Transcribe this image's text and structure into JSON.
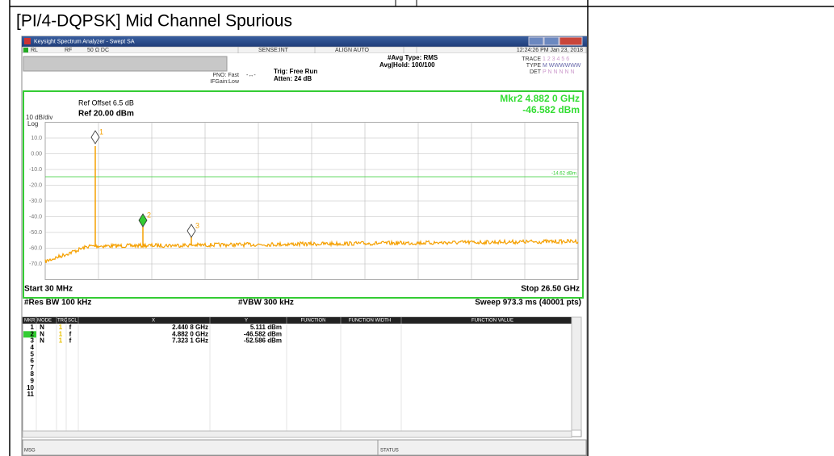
{
  "document": {
    "caption": "[PI/4-DQPSK] Mid Channel Spurious"
  },
  "window": {
    "title": "Keysight Spectrum Analyzer - Swept SA"
  },
  "status_row": [
    "RL",
    "RF",
    "50 Ω  DC",
    "SENSE:INT",
    "ALIGN AUTO",
    "12:24:26 PM Jan 23, 2018"
  ],
  "settings": {
    "pno": "PNO: Fast",
    "ifgain": "IFGain:Low",
    "trig": "Trig: Free Run",
    "atten": "Atten: 24 dB",
    "avg_type": "#Avg Type: RMS",
    "avg_hold": "Avg|Hold: 100/100",
    "trace_label": "TRACE",
    "trace_nums": "1 2 3 4 5 6",
    "type_label": "TYPE",
    "type_value": "M WWWWWW",
    "det_label": "DET",
    "det_value": "P N N N N N"
  },
  "display": {
    "ref_offset": "Ref Offset 6.5 dB",
    "ref": "Ref 20.00 dBm",
    "scale": "10 dB/div",
    "log": "Log",
    "marker_readout": "Mkr2 4.882 0 GHz",
    "marker_level": "-46.582 dBm",
    "y_labels": [
      "10.0",
      "0.00",
      "-10.0",
      "-20.0",
      "-30.0",
      "-40.0",
      "-50.0",
      "-60.0",
      "-70.0"
    ],
    "display_line": "-14.62 dBm",
    "marker_tags": [
      "1",
      "2",
      "3"
    ],
    "start": "Start 30 MHz",
    "stop": "Stop 26.50 GHz",
    "rbw": "#Res BW 100 kHz",
    "vbw": "#VBW 300 kHz",
    "sweep": "Sweep  973.3 ms (40001 pts)"
  },
  "marker_table": {
    "headers": [
      "MKR",
      "MODE",
      "TRC",
      "SCL",
      "X",
      "Y",
      "FUNCTION",
      "FUNCTION WIDTH",
      "FUNCTION VALUE"
    ],
    "rows": [
      [
        "1",
        "N",
        "1",
        "f",
        "2.440 8 GHz",
        "5.111 dBm"
      ],
      [
        "2",
        "N",
        "1",
        "f",
        "4.882 0 GHz",
        "-46.582 dBm"
      ],
      [
        "3",
        "N",
        "1",
        "f",
        "7.323 1 GHz",
        "-52.586 dBm"
      ],
      [
        "4"
      ],
      [
        "5"
      ],
      [
        "6"
      ],
      [
        "7"
      ],
      [
        "8"
      ],
      [
        "9"
      ],
      [
        "10"
      ],
      [
        "11"
      ]
    ]
  },
  "status_bar": {
    "msg": "MSG",
    "status": "STATUS"
  }
}
